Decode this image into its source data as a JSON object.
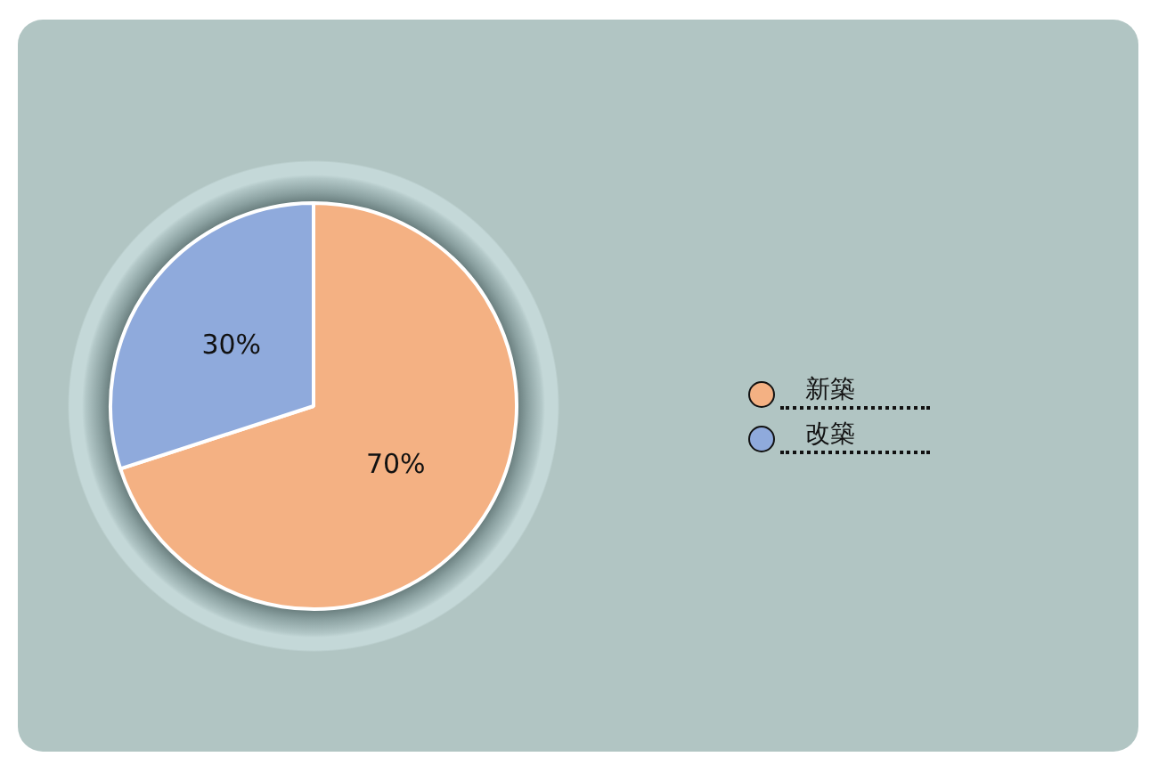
{
  "chart_data": {
    "type": "pie",
    "categories": [
      "新築",
      "改築"
    ],
    "values": [
      70,
      30
    ],
    "colors": [
      "#f4b183",
      "#8faadc"
    ],
    "value_labels": [
      "70%",
      "30%"
    ],
    "legend": "right"
  }
}
